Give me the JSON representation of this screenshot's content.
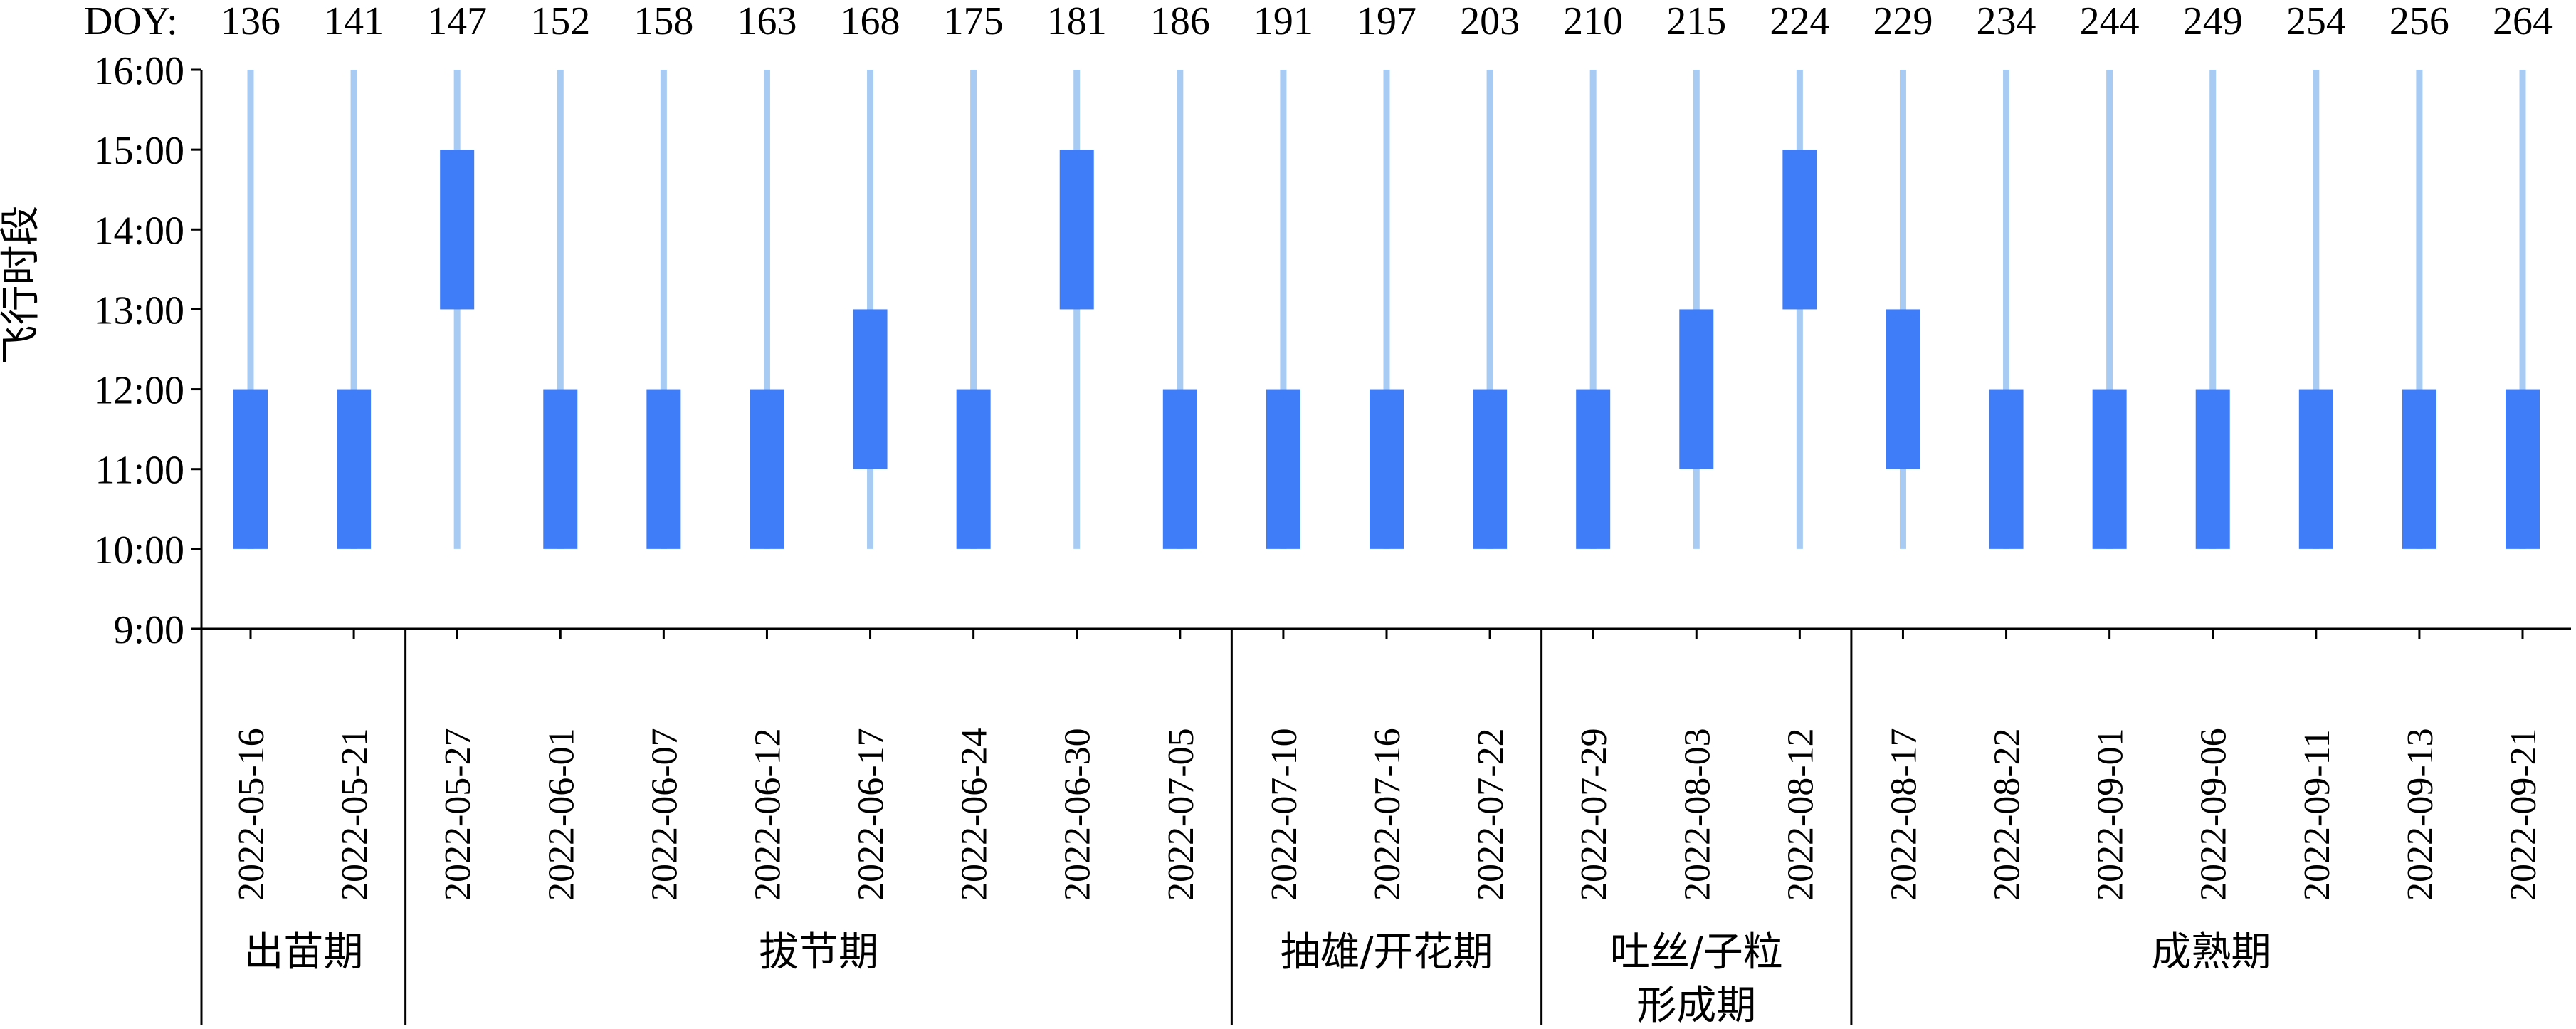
{
  "chart_data": {
    "type": "bar",
    "title": "",
    "xlabel": "",
    "ylabel": "飞行时段",
    "doy_label": "DOY:",
    "y_ticks": [
      "9:00",
      "10:00",
      "11:00",
      "12:00",
      "13:00",
      "14:00",
      "15:00",
      "16:00"
    ],
    "ylim": [
      9,
      16
    ],
    "grid": false,
    "legend": "none",
    "colors": {
      "flight_bar": "#3f7cf7",
      "day_line": "#a7cbf3",
      "axis": "#000000"
    },
    "available_window": [
      10,
      16
    ],
    "flights": [
      {
        "doy": "136",
        "date": "2022-05-16",
        "start": 10,
        "end": 12
      },
      {
        "doy": "141",
        "date": "2022-05-21",
        "start": 10,
        "end": 12
      },
      {
        "doy": "147",
        "date": "2022-05-27",
        "start": 13,
        "end": 15
      },
      {
        "doy": "152",
        "date": "2022-06-01",
        "start": 10,
        "end": 12
      },
      {
        "doy": "158",
        "date": "2022-06-07",
        "start": 10,
        "end": 12
      },
      {
        "doy": "163",
        "date": "2022-06-12",
        "start": 10,
        "end": 12
      },
      {
        "doy": "168",
        "date": "2022-06-17",
        "start": 11,
        "end": 13
      },
      {
        "doy": "175",
        "date": "2022-06-24",
        "start": 10,
        "end": 12
      },
      {
        "doy": "181",
        "date": "2022-06-30",
        "start": 13,
        "end": 15
      },
      {
        "doy": "186",
        "date": "2022-07-05",
        "start": 10,
        "end": 12
      },
      {
        "doy": "191",
        "date": "2022-07-10",
        "start": 10,
        "end": 12
      },
      {
        "doy": "197",
        "date": "2022-07-16",
        "start": 10,
        "end": 12
      },
      {
        "doy": "203",
        "date": "2022-07-22",
        "start": 10,
        "end": 12
      },
      {
        "doy": "210",
        "date": "2022-07-29",
        "start": 10,
        "end": 12
      },
      {
        "doy": "215",
        "date": "2022-08-03",
        "start": 11,
        "end": 13
      },
      {
        "doy": "224",
        "date": "2022-08-12",
        "start": 13,
        "end": 15
      },
      {
        "doy": "229",
        "date": "2022-08-17",
        "start": 11,
        "end": 13
      },
      {
        "doy": "234",
        "date": "2022-08-22",
        "start": 10,
        "end": 12
      },
      {
        "doy": "244",
        "date": "2022-09-01",
        "start": 10,
        "end": 12
      },
      {
        "doy": "249",
        "date": "2022-09-06",
        "start": 10,
        "end": 12
      },
      {
        "doy": "254",
        "date": "2022-09-11",
        "start": 10,
        "end": 12
      },
      {
        "doy": "256",
        "date": "2022-09-13",
        "start": 10,
        "end": 12
      },
      {
        "doy": "264",
        "date": "2022-09-21",
        "start": 10,
        "end": 12
      }
    ],
    "stages": [
      {
        "lines": [
          "出苗期"
        ],
        "first": 0,
        "last": 1
      },
      {
        "lines": [
          "拔节期"
        ],
        "first": 2,
        "last": 9
      },
      {
        "lines": [
          "抽雄/开花期"
        ],
        "first": 10,
        "last": 12
      },
      {
        "lines": [
          "吐丝/子粒",
          "形成期"
        ],
        "first": 13,
        "last": 15
      },
      {
        "lines": [
          "成熟期"
        ],
        "first": 16,
        "last": 22
      }
    ]
  }
}
